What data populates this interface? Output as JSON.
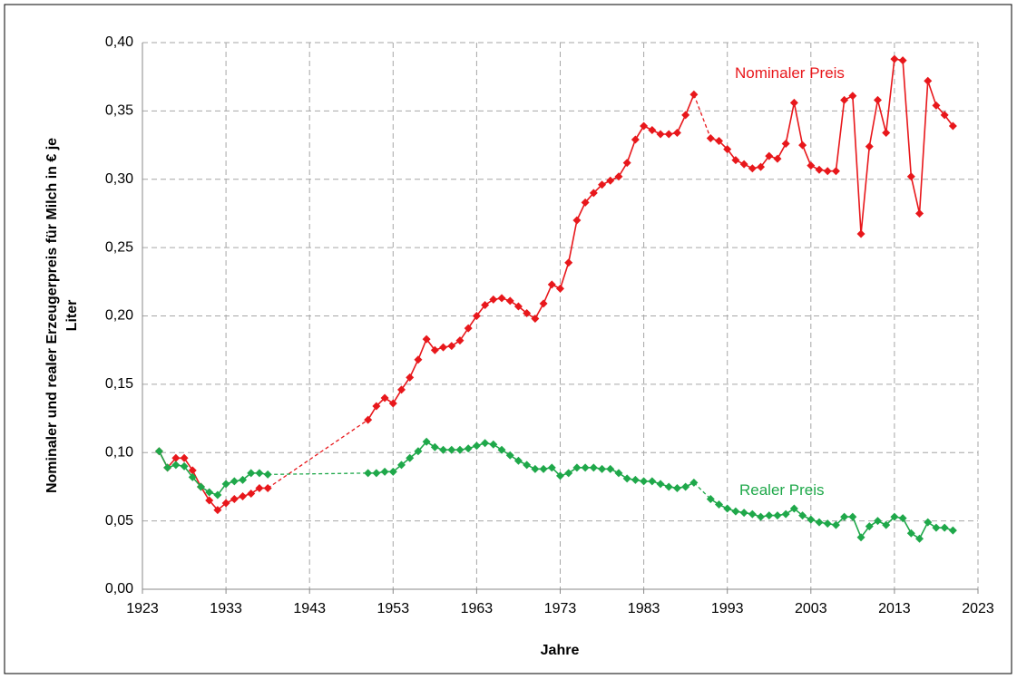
{
  "chart_data": {
    "type": "line",
    "xlabel": "Jahre",
    "ylabel": [
      "Nominaler und realer Erzeugerpreis für Milch in € je",
      "Liter"
    ],
    "x": [
      1925,
      1926,
      1927,
      1928,
      1929,
      1930,
      1931,
      1932,
      1933,
      1934,
      1935,
      1936,
      1937,
      1938,
      1939,
      1940,
      1941,
      1942,
      1943,
      1944,
      1945,
      1946,
      1947,
      1948,
      1949,
      1950,
      1951,
      1952,
      1953,
      1954,
      1955,
      1956,
      1957,
      1958,
      1959,
      1960,
      1961,
      1962,
      1963,
      1964,
      1965,
      1966,
      1967,
      1968,
      1969,
      1970,
      1971,
      1972,
      1973,
      1974,
      1975,
      1976,
      1977,
      1978,
      1979,
      1980,
      1981,
      1982,
      1983,
      1984,
      1985,
      1986,
      1987,
      1988,
      1989,
      1990,
      1991,
      1992,
      1993,
      1994,
      1995,
      1996,
      1997,
      1998,
      1999,
      2000,
      2001,
      2002,
      2003,
      2004,
      2005,
      2006,
      2007,
      2008,
      2009,
      2010,
      2011,
      2012,
      2013,
      2014,
      2015,
      2016,
      2017,
      2018,
      2019,
      2020
    ],
    "series": [
      {
        "name": "Nominaler Preis",
        "color": "#e8171b",
        "values": [
          0.101,
          0.089,
          0.096,
          0.096,
          0.087,
          0.075,
          0.065,
          0.058,
          0.063,
          0.066,
          0.068,
          0.07,
          0.074,
          0.074,
          null,
          null,
          null,
          null,
          null,
          null,
          null,
          null,
          null,
          null,
          null,
          0.124,
          0.134,
          0.14,
          0.136,
          0.146,
          0.155,
          0.168,
          0.183,
          0.175,
          0.177,
          0.178,
          0.182,
          0.191,
          0.2,
          0.208,
          0.212,
          0.213,
          0.211,
          0.207,
          0.202,
          0.198,
          0.209,
          0.223,
          0.22,
          0.239,
          0.27,
          0.283,
          0.29,
          0.296,
          0.299,
          0.302,
          0.312,
          0.329,
          0.339,
          0.336,
          0.333,
          0.333,
          0.334,
          0.347,
          0.362,
          null,
          0.33,
          0.328,
          0.322,
          0.314,
          0.311,
          0.308,
          0.309,
          0.317,
          0.315,
          0.326,
          0.356,
          0.325,
          0.31,
          0.307,
          0.306,
          0.306,
          0.358,
          0.361,
          0.26,
          0.324,
          0.358,
          0.334,
          0.388,
          0.387,
          0.302,
          0.275,
          0.372,
          0.354,
          0.347,
          0.339
        ]
      },
      {
        "name": "Realer Preis",
        "color": "#1fa84a",
        "values": [
          0.101,
          0.089,
          0.091,
          0.09,
          0.082,
          0.075,
          0.071,
          0.069,
          0.077,
          0.079,
          0.08,
          0.085,
          0.085,
          0.084,
          null,
          null,
          null,
          null,
          null,
          null,
          null,
          null,
          null,
          null,
          null,
          0.085,
          0.085,
          0.086,
          0.086,
          0.091,
          0.096,
          0.101,
          0.108,
          0.104,
          0.102,
          0.102,
          0.102,
          0.103,
          0.105,
          0.107,
          0.106,
          0.102,
          0.098,
          0.094,
          0.091,
          0.088,
          0.088,
          0.089,
          0.083,
          0.085,
          0.089,
          0.089,
          0.089,
          0.088,
          0.088,
          0.085,
          0.081,
          0.08,
          0.079,
          0.079,
          0.077,
          0.075,
          0.074,
          0.075,
          0.078,
          null,
          0.066,
          0.062,
          0.059,
          0.057,
          0.056,
          0.055,
          0.053,
          0.054,
          0.054,
          0.055,
          0.059,
          0.054,
          0.051,
          0.049,
          0.048,
          0.047,
          0.053,
          0.053,
          0.038,
          0.046,
          0.05,
          0.047,
          0.053,
          0.052,
          0.041,
          0.037,
          0.049,
          0.045,
          0.045,
          0.043
        ]
      }
    ],
    "xlim": [
      1923,
      2023
    ],
    "xticks": [
      1923,
      1933,
      1943,
      1953,
      1963,
      1973,
      1983,
      1993,
      2003,
      2013,
      2023
    ],
    "ylim": [
      0,
      0.4
    ],
    "yticks": [
      {
        "value": 0,
        "label": "0,00"
      },
      {
        "value": 0.05,
        "label": "0,05"
      },
      {
        "value": 0.1,
        "label": "0,10"
      },
      {
        "value": 0.15,
        "label": "0,15"
      },
      {
        "value": 0.2,
        "label": "0,20"
      },
      {
        "value": 0.25,
        "label": "0,25"
      },
      {
        "value": 0.3,
        "label": "0,30"
      },
      {
        "value": 0.35,
        "label": "0,35"
      },
      {
        "value": 0.4,
        "label": "0,40"
      }
    ],
    "grid": true
  }
}
